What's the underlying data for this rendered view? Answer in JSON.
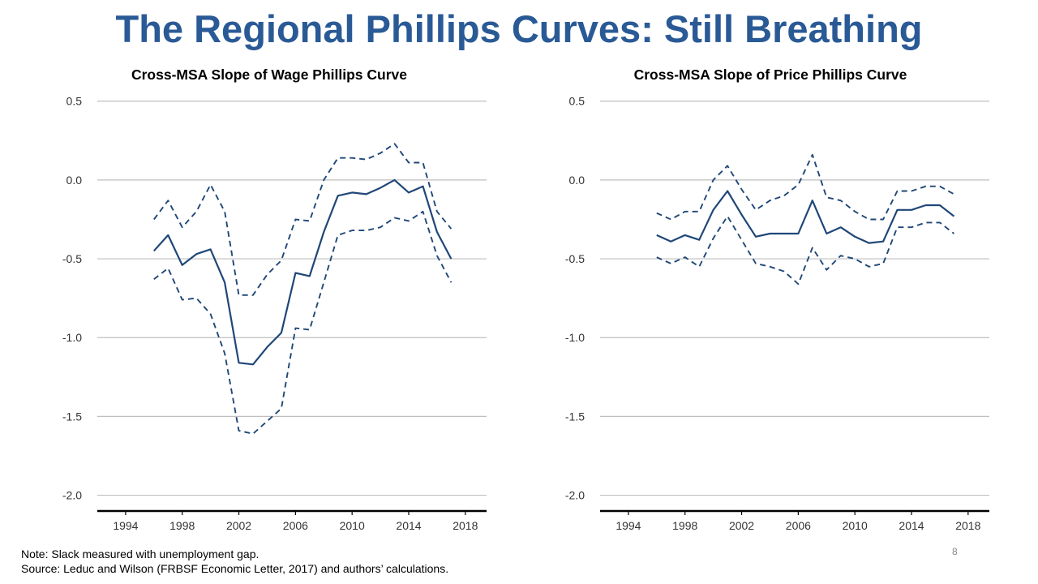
{
  "slide": {
    "title": "The Regional Phillips Curves: Still Breathing",
    "note": "Note: Slack measured with unemployment  gap.",
    "source": "Source: Leduc and Wilson (FRBSF Economic Letter, 2017) and authors’ calculations.",
    "page_number": "8"
  },
  "colors": {
    "title": "#2a5a96",
    "series": "#1f4777",
    "grid": "#bfbfbf"
  },
  "chart_data": [
    {
      "type": "line",
      "title": "Cross-MSA Slope of Wage Phillips Curve",
      "xlabel": "",
      "ylabel": "",
      "xlim": [
        1992,
        2019.5
      ],
      "ylim": [
        -2.1,
        0.55
      ],
      "x_ticks": [
        "1994",
        "1998",
        "2002",
        "2006",
        "2010",
        "2014",
        "2018"
      ],
      "y_ticks": [
        "0.5",
        "0.0",
        "-0.5",
        "-1.0",
        "-1.5",
        "-2.0"
      ],
      "grid": true,
      "x": [
        1996,
        1997,
        1998,
        1999,
        2000,
        2001,
        2002,
        2003,
        2004,
        2005,
        2006,
        2007,
        2008,
        2009,
        2010,
        2011,
        2012,
        2013,
        2014,
        2015,
        2016,
        2017
      ],
      "series": [
        {
          "style": "solid",
          "values": [
            -0.45,
            -0.35,
            -0.54,
            -0.47,
            -0.44,
            -0.65,
            -1.16,
            -1.17,
            -1.06,
            -0.97,
            -0.59,
            -0.61,
            -0.33,
            -0.1,
            -0.08,
            -0.09,
            -0.05,
            0.0,
            -0.08,
            -0.04,
            -0.33,
            -0.5
          ]
        },
        {
          "style": "dashed",
          "values": [
            -0.25,
            -0.13,
            -0.3,
            -0.2,
            -0.03,
            -0.2,
            -0.73,
            -0.73,
            -0.6,
            -0.51,
            -0.25,
            -0.26,
            0.0,
            0.14,
            0.14,
            0.13,
            0.17,
            0.23,
            0.11,
            0.11,
            -0.2,
            -0.31
          ]
        },
        {
          "style": "dashed",
          "values": [
            -0.63,
            -0.56,
            -0.76,
            -0.75,
            -0.85,
            -1.1,
            -1.59,
            -1.61,
            -1.53,
            -1.45,
            -0.94,
            -0.95,
            -0.65,
            -0.35,
            -0.32,
            -0.32,
            -0.3,
            -0.24,
            -0.26,
            -0.2,
            -0.48,
            -0.65
          ]
        }
      ]
    },
    {
      "type": "line",
      "title": "Cross-MSA Slope of Price Phillips Curve",
      "xlabel": "",
      "ylabel": "",
      "xlim": [
        1992,
        2019.5
      ],
      "ylim": [
        -2.1,
        0.55
      ],
      "x_ticks": [
        "1994",
        "1998",
        "2002",
        "2006",
        "2010",
        "2014",
        "2018"
      ],
      "y_ticks": [
        "0.5",
        "0.0",
        "-0.5",
        "-1.0",
        "-1.5",
        "-2.0"
      ],
      "grid": true,
      "x": [
        1996,
        1997,
        1998,
        1999,
        2000,
        2001,
        2002,
        2003,
        2004,
        2005,
        2006,
        2007,
        2008,
        2009,
        2010,
        2011,
        2012,
        2013,
        2014,
        2015,
        2016,
        2017
      ],
      "series": [
        {
          "style": "solid",
          "values": [
            -0.35,
            -0.39,
            -0.35,
            -0.38,
            -0.19,
            -0.07,
            -0.22,
            -0.36,
            -0.34,
            -0.34,
            -0.34,
            -0.13,
            -0.34,
            -0.3,
            -0.36,
            -0.4,
            -0.39,
            -0.19,
            -0.19,
            -0.16,
            -0.16,
            -0.23
          ]
        },
        {
          "style": "dashed",
          "values": [
            -0.21,
            -0.25,
            -0.2,
            -0.2,
            0.0,
            0.09,
            -0.06,
            -0.19,
            -0.13,
            -0.1,
            -0.03,
            0.16,
            -0.11,
            -0.13,
            -0.2,
            -0.25,
            -0.25,
            -0.07,
            -0.07,
            -0.04,
            -0.04,
            -0.09
          ]
        },
        {
          "style": "dashed",
          "values": [
            -0.49,
            -0.53,
            -0.49,
            -0.55,
            -0.37,
            -0.23,
            -0.38,
            -0.53,
            -0.55,
            -0.58,
            -0.66,
            -0.43,
            -0.57,
            -0.48,
            -0.5,
            -0.55,
            -0.53,
            -0.3,
            -0.3,
            -0.27,
            -0.27,
            -0.34
          ]
        }
      ]
    }
  ]
}
